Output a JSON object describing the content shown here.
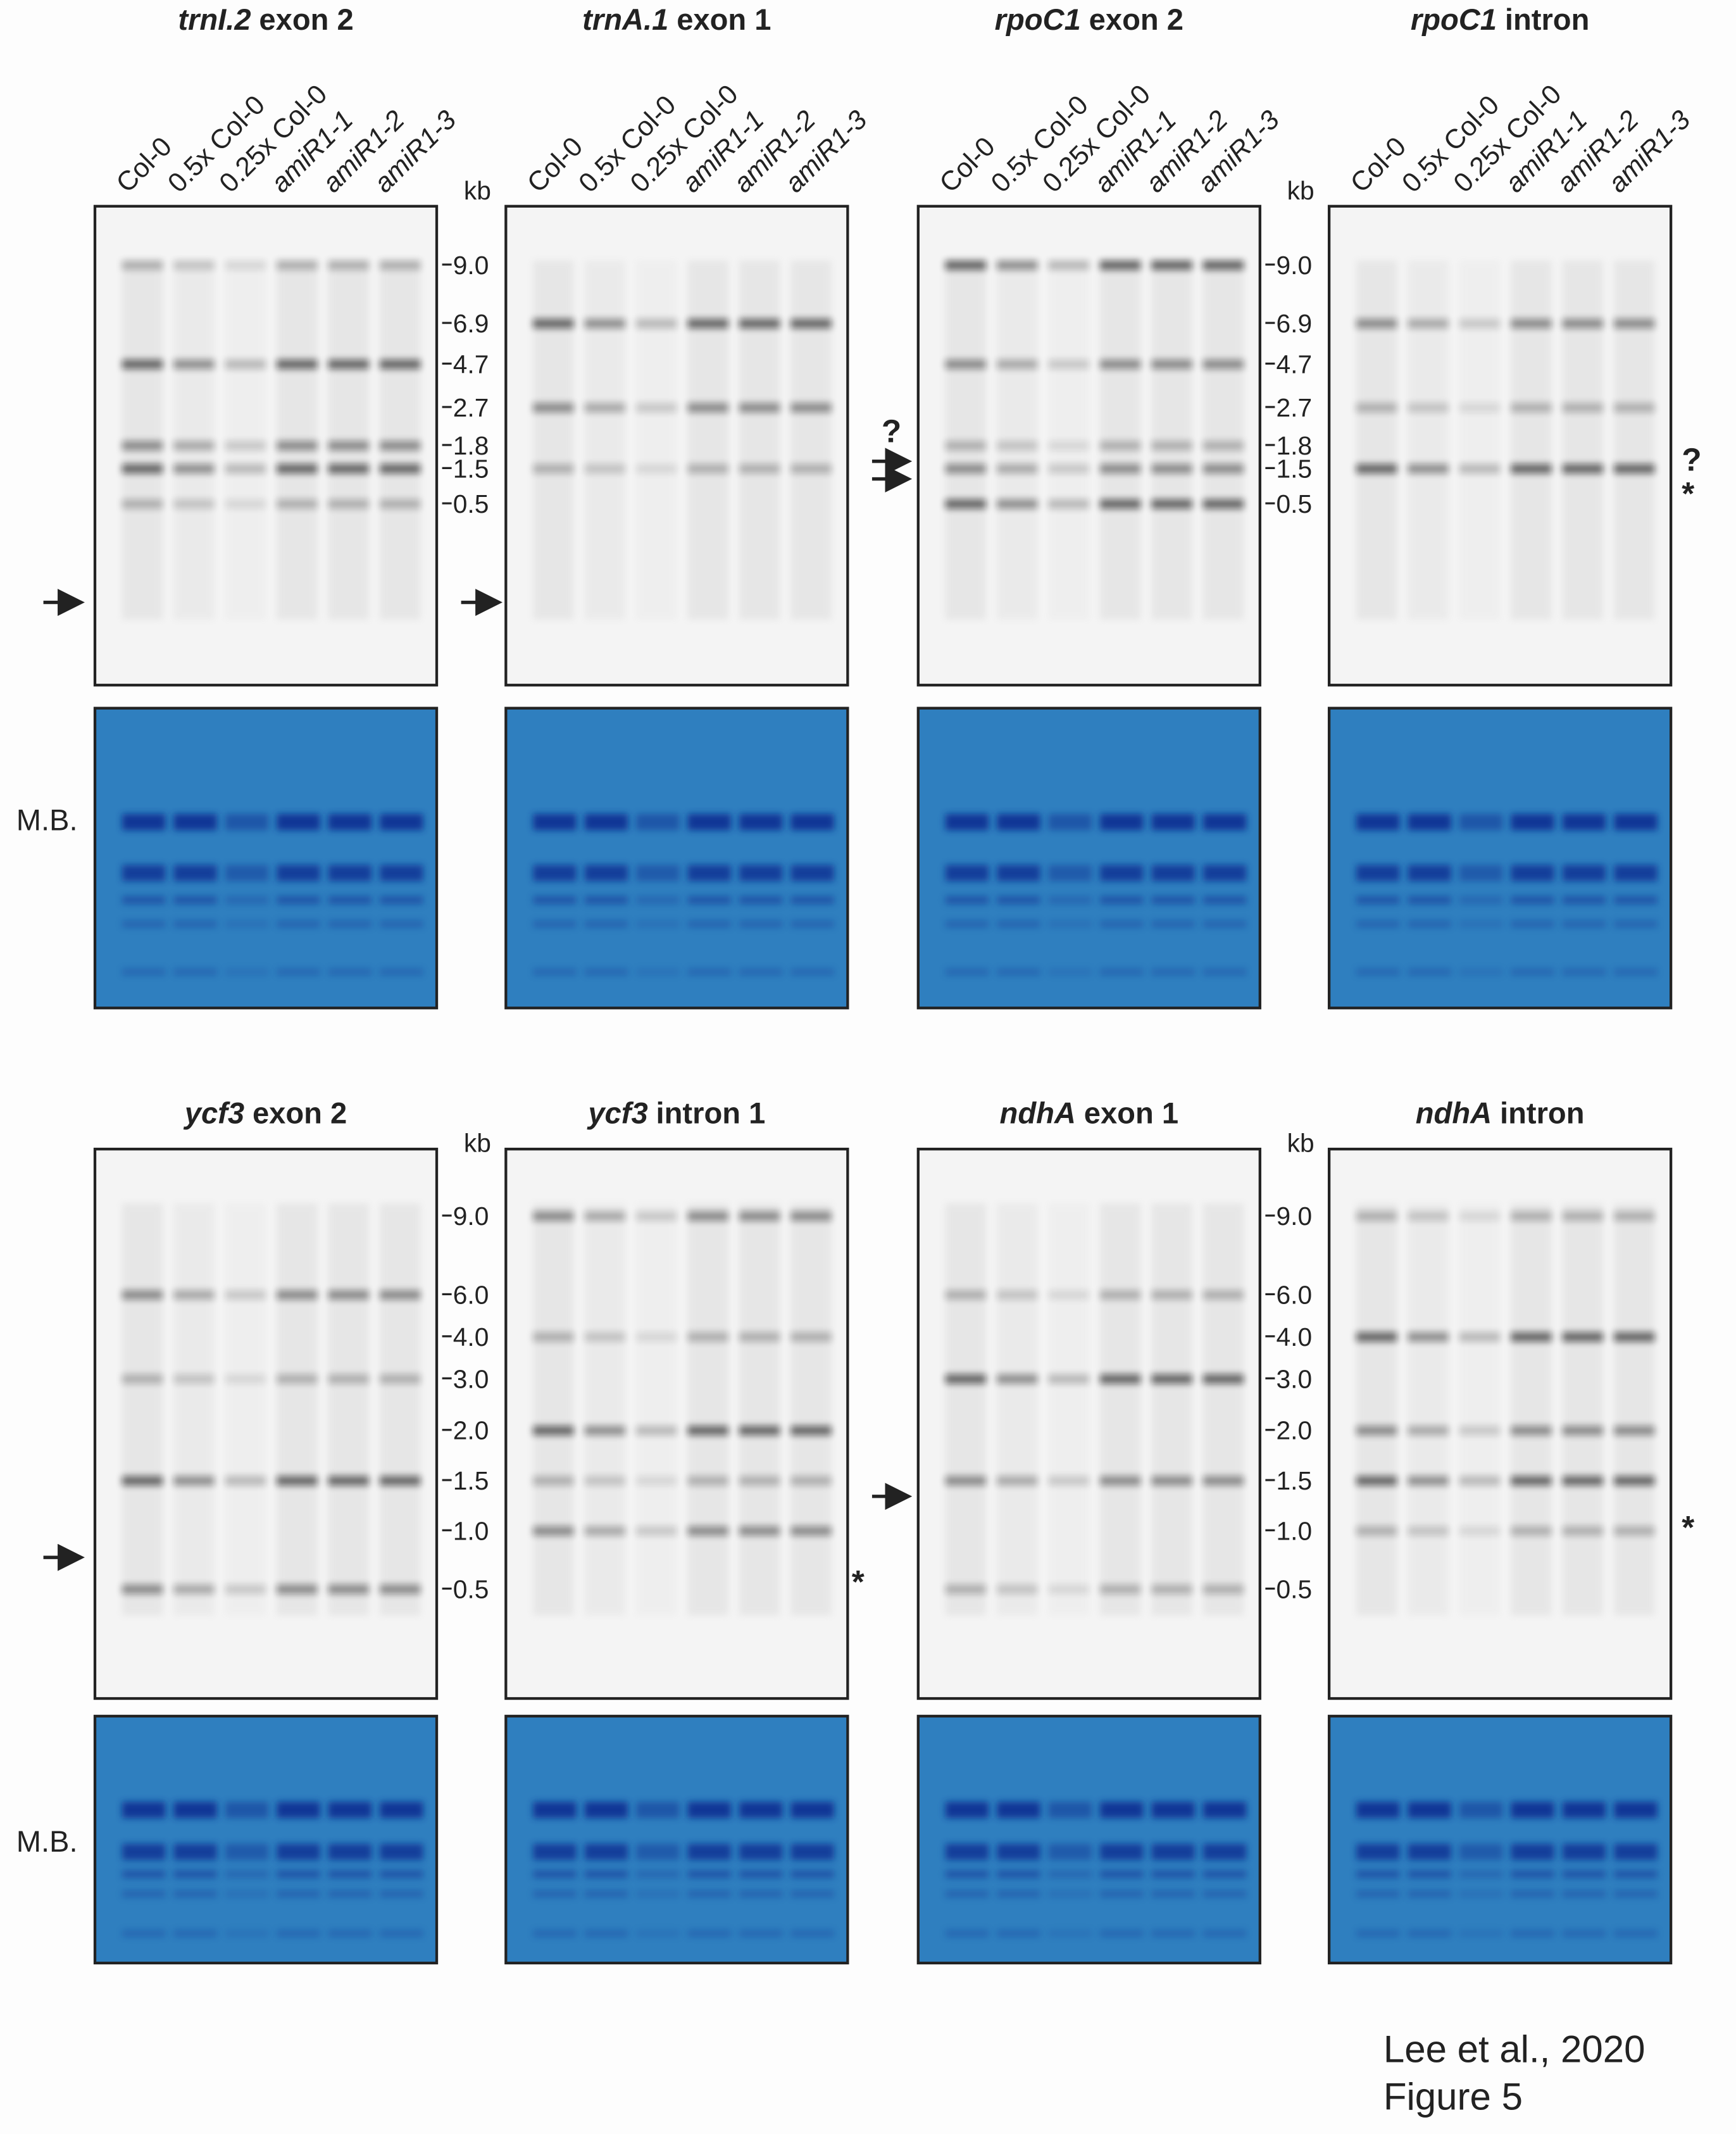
{
  "rows": [
    {
      "panels": [
        {
          "gene": "trnI.2",
          "region": "exon 2",
          "lanes": [
            "Col-0",
            "0.5x Col-0",
            "0.25x Col-0",
            "amiR1-1",
            "amiR1-2",
            "amiR1-3"
          ]
        },
        {
          "gene": "trnA.1",
          "region": "exon 1",
          "lanes": [
            "Col-0",
            "0.5x Col-0",
            "0.25x Col-0",
            "amiR1-1",
            "amiR1-2",
            "amiR1-3"
          ]
        },
        {
          "gene": "rpoC1",
          "region": "exon 2",
          "lanes": [
            "Col-0",
            "0.5x Col-0",
            "0.25x Col-0",
            "amiR1-1",
            "amiR1-2",
            "amiR1-3"
          ]
        },
        {
          "gene": "rpoC1",
          "region": "intron",
          "lanes": [
            "Col-0",
            "0.5x Col-0",
            "0.25x Col-0",
            "amiR1-1",
            "amiR1-2",
            "amiR1-3"
          ]
        }
      ],
      "size_unit": "kb",
      "sizes": [
        "9.0",
        "6.9",
        "4.7",
        "2.7",
        "1.8",
        "1.5",
        "0.5"
      ],
      "stain": "M.B.",
      "notes": [
        "?",
        "?",
        "*"
      ]
    },
    {
      "panels": [
        {
          "gene": "ycf3",
          "region": "exon 2"
        },
        {
          "gene": "ycf3",
          "region": "intron 1"
        },
        {
          "gene": "ndhA",
          "region": "exon 1"
        },
        {
          "gene": "ndhA",
          "region": "intron"
        }
      ],
      "size_unit": "kb",
      "sizes": [
        "9.0",
        "6.0",
        "4.0",
        "3.0",
        "2.0",
        "1.5",
        "1.0",
        "0.5"
      ],
      "stain": "M.B.",
      "notes": [
        "*",
        "*"
      ]
    }
  ],
  "caption": {
    "line1": "Lee et al., 2020",
    "line2": "Figure 5"
  }
}
